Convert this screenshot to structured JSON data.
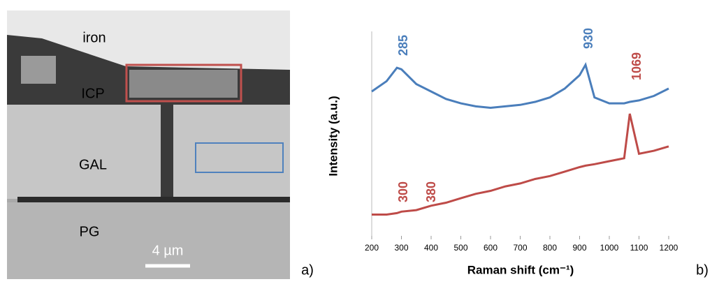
{
  "image": {
    "labels": [
      "iron",
      "ICP",
      "GAL",
      "PG"
    ],
    "scale_bar": "4 µm",
    "panel": "a)"
  },
  "chart_data": {
    "type": "line",
    "panel": "b)",
    "x_label": "Raman shift (cm⁻¹)",
    "y_label": "Intensity (a.u.)",
    "x": [
      200,
      250,
      285,
      300,
      350,
      400,
      450,
      500,
      550,
      600,
      650,
      700,
      750,
      800,
      850,
      900,
      920,
      950,
      1000,
      1050,
      1069,
      1100,
      1150,
      1200
    ],
    "series": [
      {
        "color": "#4a7ebb",
        "values": [
          4.75,
          5.1,
          5.55,
          5.5,
          5.0,
          4.75,
          4.5,
          4.35,
          4.25,
          4.2,
          4.25,
          4.3,
          4.4,
          4.55,
          4.85,
          5.3,
          5.65,
          4.55,
          4.35,
          4.35,
          4.4,
          4.45,
          4.6,
          4.85
        ]
      },
      {
        "color": "#be4b48",
        "values": [
          0.6,
          0.6,
          0.65,
          0.7,
          0.75,
          0.9,
          1.0,
          1.15,
          1.3,
          1.4,
          1.55,
          1.65,
          1.8,
          1.9,
          2.05,
          2.2,
          2.25,
          2.3,
          2.4,
          2.5,
          4.0,
          2.65,
          2.75,
          2.9
        ]
      }
    ],
    "annotations": [
      {
        "text": "285",
        "color": "#4a7ebb"
      },
      {
        "text": "930",
        "color": "#4a7ebb"
      },
      {
        "text": "1069",
        "color": "#be4b48"
      },
      {
        "text": "300",
        "color": "#be4b48"
      },
      {
        "text": "380",
        "color": "#be4b48"
      }
    ],
    "xlim": [
      200,
      1200
    ],
    "ylim": [
      0,
      6
    ],
    "xticks": [
      200,
      300,
      400,
      500,
      600,
      700,
      800,
      900,
      1000,
      1100,
      1200
    ]
  }
}
